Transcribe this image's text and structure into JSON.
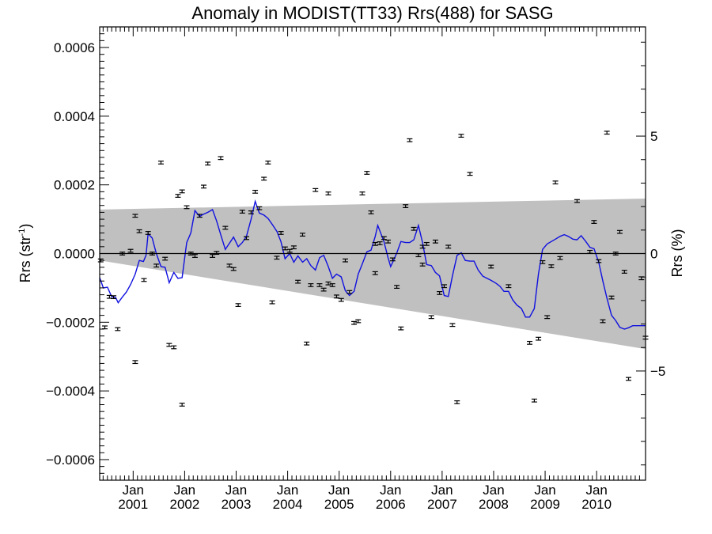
{
  "chart_data": {
    "type": "scatter",
    "title": "Anomaly in MODIST(TT33) Rrs(488) for SASG",
    "ylabel": "Rrs (str",
    "ylabel_sup": "-1",
    "ylabel_end": ")",
    "y2label": "Rrs (%)",
    "xlim": [
      2000.35,
      2010.95
    ],
    "ylim": [
      -0.00066,
      0.00066
    ],
    "y2lim": [
      -9.65,
      9.65
    ],
    "grid": false,
    "x_ticks": [
      {
        "x": 2001.0,
        "month": "Jan",
        "year": "2001"
      },
      {
        "x": 2002.0,
        "month": "Jan",
        "year": "2002"
      },
      {
        "x": 2003.0,
        "month": "Jan",
        "year": "2003"
      },
      {
        "x": 2004.0,
        "month": "Jan",
        "year": "2004"
      },
      {
        "x": 2005.0,
        "month": "Jan",
        "year": "2005"
      },
      {
        "x": 2006.0,
        "month": "Jan",
        "year": "2006"
      },
      {
        "x": 2007.0,
        "month": "Jan",
        "year": "2007"
      },
      {
        "x": 2008.0,
        "month": "Jan",
        "year": "2008"
      },
      {
        "x": 2009.0,
        "month": "Jan",
        "year": "2009"
      },
      {
        "x": 2010.0,
        "month": "Jan",
        "year": "2010"
      }
    ],
    "y_ticks": [
      {
        "v": 0.0006,
        "label": "0.0006"
      },
      {
        "v": 0.0004,
        "label": "0.0004"
      },
      {
        "v": 0.0002,
        "label": "0.0002"
      },
      {
        "v": 0.0,
        "label": "0.0000"
      },
      {
        "v": -0.0002,
        "label": "−0.0002"
      },
      {
        "v": -0.0004,
        "label": "−0.0004"
      },
      {
        "v": -0.0006,
        "label": "−0.0006"
      }
    ],
    "y2_ticks": [
      {
        "v": 5,
        "label": "5"
      },
      {
        "v": 0,
        "label": "0"
      },
      {
        "v": -5,
        "label": "−5"
      }
    ],
    "band": {
      "color": "#c0c0c0",
      "upper": [
        [
          2000.35,
          0.000128
        ],
        [
          2010.95,
          0.00016
        ]
      ],
      "lower": [
        [
          2000.35,
          -2e-05
        ],
        [
          2010.95,
          -0.000278
        ]
      ]
    },
    "zero_line": {
      "color": "#000000"
    },
    "series": [
      {
        "kind": "points",
        "color": "#000000",
        "marker": "error-bar",
        "points": [
          [
            2000.37,
            -2e-05
          ],
          [
            2000.45,
            -0.000215
          ],
          [
            2000.54,
            -0.000126
          ],
          [
            2000.62,
            -0.000127
          ],
          [
            2000.7,
            -0.00022
          ],
          [
            2000.79,
            0.0
          ],
          [
            2000.95,
            8e-06
          ],
          [
            2001.04,
            -0.000316
          ],
          [
            2001.04,
            0.00011
          ],
          [
            2001.12,
            6.5e-05
          ],
          [
            2001.21,
            -7.7e-05
          ],
          [
            2001.29,
            6e-05
          ],
          [
            2001.37,
            0.0
          ],
          [
            2001.45,
            -3.5e-05
          ],
          [
            2001.54,
            0.000265
          ],
          [
            2001.62,
            -1.5e-05
          ],
          [
            2001.7,
            -0.000266
          ],
          [
            2001.79,
            -0.000273
          ],
          [
            2001.87,
            0.000168
          ],
          [
            2001.95,
            0.000181
          ],
          [
            2001.95,
            -0.00044
          ],
          [
            2002.04,
            0.000135
          ],
          [
            2002.12,
            0.0
          ],
          [
            2002.2,
            -7e-06
          ],
          [
            2002.29,
            0.00011
          ],
          [
            2002.37,
            0.000195
          ],
          [
            2002.45,
            0.000262
          ],
          [
            2002.54,
            -7e-06
          ],
          [
            2002.62,
            2e-06
          ],
          [
            2002.7,
            0.000278
          ],
          [
            2002.79,
            7.5e-05
          ],
          [
            2002.87,
            -3.5e-05
          ],
          [
            2002.95,
            -4.5e-05
          ],
          [
            2003.04,
            -0.00015
          ],
          [
            2003.12,
            0.000122
          ],
          [
            2003.2,
            4.5e-05
          ],
          [
            2003.29,
            0.00012
          ],
          [
            2003.37,
            0.00018
          ],
          [
            2003.45,
            0.000132
          ],
          [
            2003.54,
            0.000218
          ],
          [
            2003.62,
            0.000265
          ],
          [
            2003.7,
            -0.000142
          ],
          [
            2003.79,
            -1.2e-05
          ],
          [
            2003.87,
            6e-05
          ],
          [
            2003.95,
            1.5e-05
          ],
          [
            2004.04,
            8e-06
          ],
          [
            2004.12,
            1.8e-05
          ],
          [
            2004.2,
            -8.2e-05
          ],
          [
            2004.29,
            5.5e-05
          ],
          [
            2004.37,
            -0.000262
          ],
          [
            2004.45,
            -9.2e-05
          ],
          [
            2004.54,
            0.000185
          ],
          [
            2004.62,
            -9.2e-05
          ],
          [
            2004.7,
            -0.000105
          ],
          [
            2004.79,
            0.000175
          ],
          [
            2004.79,
            -8.7e-05
          ],
          [
            2004.87,
            -9.2e-05
          ],
          [
            2004.95,
            -0.000125
          ],
          [
            2005.04,
            -0.000135
          ],
          [
            2005.12,
            -2e-05
          ],
          [
            2005.2,
            -0.000112
          ],
          [
            2005.29,
            -0.000202
          ],
          [
            2005.37,
            -0.000197
          ],
          [
            2005.45,
            0.000175
          ],
          [
            2005.54,
            0.000235
          ],
          [
            2005.62,
            0.00012
          ],
          [
            2005.7,
            2.8e-05
          ],
          [
            2005.7,
            -5.7e-05
          ],
          [
            2005.79,
            3e-05
          ],
          [
            2005.87,
            4.5e-05
          ],
          [
            2005.95,
            3.5e-05
          ],
          [
            2006.04,
            -1.7e-05
          ],
          [
            2006.12,
            -9.7e-05
          ],
          [
            2006.2,
            -0.000218
          ],
          [
            2006.29,
            0.000138
          ],
          [
            2006.37,
            0.00033
          ],
          [
            2006.45,
            7.2e-05
          ],
          [
            2006.54,
            -5e-06
          ],
          [
            2006.62,
            -3.2e-05
          ],
          [
            2006.62,
            2e-05
          ],
          [
            2006.7,
            2.8e-05
          ],
          [
            2006.79,
            -0.000185
          ],
          [
            2006.87,
            3.5e-05
          ],
          [
            2006.95,
            -0.000115
          ],
          [
            2007.04,
            -9.5e-05
          ],
          [
            2007.12,
            2e-05
          ],
          [
            2007.2,
            -0.000208
          ],
          [
            2007.29,
            -0.000433
          ],
          [
            2007.37,
            0.000343
          ],
          [
            2007.54,
            0.000232
          ],
          [
            2007.95,
            -3.8e-05
          ],
          [
            2008.29,
            -9.5e-05
          ],
          [
            2008.7,
            -0.00026
          ],
          [
            2008.79,
            -0.000428
          ],
          [
            2008.87,
            -0.000248
          ],
          [
            2008.95,
            -2.5e-05
          ],
          [
            2009.04,
            -0.000185
          ],
          [
            2009.12,
            -3.7e-05
          ],
          [
            2009.2,
            0.000207
          ],
          [
            2009.29,
            -1.3e-05
          ],
          [
            2009.62,
            0.000153
          ],
          [
            2009.87,
            5e-06
          ],
          [
            2009.95,
            9.2e-05
          ],
          [
            2010.04,
            -2.2e-05
          ],
          [
            2010.12,
            -0.000197
          ],
          [
            2010.2,
            0.000352
          ],
          [
            2010.29,
            -0.000128
          ],
          [
            2010.37,
            0.0
          ],
          [
            2010.45,
            6.3e-05
          ],
          [
            2010.54,
            -5.3e-05
          ],
          [
            2010.62,
            -0.000365
          ],
          [
            2010.87,
            -7.2e-05
          ],
          [
            2010.95,
            -0.000245
          ]
        ]
      },
      {
        "kind": "line",
        "color": "#1010e0",
        "points": [
          [
            2000.35,
            -7e-05
          ],
          [
            2000.42,
            -0.0001
          ],
          [
            2000.5,
            -9.8e-05
          ],
          [
            2000.58,
            -0.000125
          ],
          [
            2000.66,
            -0.000128
          ],
          [
            2000.71,
            -0.000143
          ],
          [
            2000.79,
            -0.000127
          ],
          [
            2000.87,
            -0.000112
          ],
          [
            2000.95,
            -9e-05
          ],
          [
            2001.04,
            -6e-05
          ],
          [
            2001.12,
            -2e-05
          ],
          [
            2001.2,
            -2.3e-05
          ],
          [
            2001.25,
            -5e-06
          ],
          [
            2001.29,
            5.8e-05
          ],
          [
            2001.37,
            4.5e-05
          ],
          [
            2001.45,
            -0.0
          ],
          [
            2001.54,
            -3.8e-05
          ],
          [
            2001.62,
            -4e-05
          ],
          [
            2001.7,
            -8.5e-05
          ],
          [
            2001.79,
            -5.5e-05
          ],
          [
            2001.87,
            -7.2e-05
          ],
          [
            2001.95,
            -7e-05
          ],
          [
            2002.04,
            3.2e-05
          ],
          [
            2002.12,
            6e-05
          ],
          [
            2002.2,
            0.000125
          ],
          [
            2002.29,
            0.000108
          ],
          [
            2002.37,
            0.000115
          ],
          [
            2002.45,
            0.00012
          ],
          [
            2002.54,
            0.000128
          ],
          [
            2002.62,
            9.5e-05
          ],
          [
            2002.7,
            5.5e-05
          ],
          [
            2002.79,
            1.2e-05
          ],
          [
            2002.87,
            3e-05
          ],
          [
            2002.95,
            4.8e-05
          ],
          [
            2003.04,
            2e-05
          ],
          [
            2003.12,
            3.2e-05
          ],
          [
            2003.2,
            5e-05
          ],
          [
            2003.29,
            0.0001
          ],
          [
            2003.37,
            0.000152
          ],
          [
            2003.45,
            0.000118
          ],
          [
            2003.54,
            0.000112
          ],
          [
            2003.62,
            0.000102
          ],
          [
            2003.7,
            8.5e-05
          ],
          [
            2003.79,
            6.5e-05
          ],
          [
            2003.87,
            3.5e-05
          ],
          [
            2003.95,
            -1.5e-05
          ],
          [
            2004.04,
            0.0
          ],
          [
            2004.12,
            -2.5e-05
          ],
          [
            2004.2,
            -7e-06
          ],
          [
            2004.29,
            -2.5e-05
          ],
          [
            2004.37,
            -1.5e-05
          ],
          [
            2004.45,
            -3.5e-05
          ],
          [
            2004.54,
            -4.8e-05
          ],
          [
            2004.62,
            -1.2e-05
          ],
          [
            2004.7,
            -5e-06
          ],
          [
            2004.79,
            -3.8e-05
          ],
          [
            2004.87,
            -7.2e-05
          ],
          [
            2004.95,
            -6e-05
          ],
          [
            2005.04,
            -6.8e-05
          ],
          [
            2005.12,
            -0.000108
          ],
          [
            2005.2,
            -0.000122
          ],
          [
            2005.29,
            -0.00011
          ],
          [
            2005.37,
            -6e-05
          ],
          [
            2005.45,
            -3e-05
          ],
          [
            2005.54,
            5e-06
          ],
          [
            2005.62,
            1e-05
          ],
          [
            2005.7,
            5e-05
          ],
          [
            2005.75,
            8.2e-05
          ],
          [
            2005.87,
            3.5e-05
          ],
          [
            2005.95,
            -1.2e-05
          ],
          [
            2006.0,
            -3.8e-05
          ],
          [
            2006.04,
            -2.5e-05
          ],
          [
            2006.12,
            2e-06
          ],
          [
            2006.2,
            3.5e-05
          ],
          [
            2006.29,
            3.2e-05
          ],
          [
            2006.37,
            3.2e-05
          ],
          [
            2006.45,
            4e-05
          ],
          [
            2006.54,
            8.2e-05
          ],
          [
            2006.62,
            3.2e-05
          ],
          [
            2006.7,
            -3.2e-05
          ],
          [
            2006.79,
            -3.5e-05
          ],
          [
            2006.87,
            -5.5e-05
          ],
          [
            2006.95,
            -6.5e-05
          ],
          [
            2007.04,
            -0.000122
          ],
          [
            2007.12,
            -0.000125
          ],
          [
            2007.2,
            -6.5e-05
          ],
          [
            2007.29,
            -5e-06
          ],
          [
            2007.37,
            2e-06
          ],
          [
            2007.45,
            -2e-05
          ],
          [
            2007.54,
            -2.2e-05
          ],
          [
            2007.62,
            -2.2e-05
          ],
          [
            2007.7,
            -4.8e-05
          ],
          [
            2007.79,
            -6.6e-05
          ],
          [
            2007.87,
            -7.2e-05
          ],
          [
            2007.95,
            -7.8e-05
          ],
          [
            2008.04,
            -8.6e-05
          ],
          [
            2008.12,
            -9.5e-05
          ],
          [
            2008.2,
            -0.00011
          ],
          [
            2008.29,
            -0.00011
          ],
          [
            2008.37,
            -0.000135
          ],
          [
            2008.45,
            -0.00015
          ],
          [
            2008.54,
            -0.00016
          ],
          [
            2008.62,
            -0.000185
          ],
          [
            2008.7,
            -0.000185
          ],
          [
            2008.79,
            -0.00016
          ],
          [
            2008.87,
            -6e-05
          ],
          [
            2008.95,
            1.2e-05
          ],
          [
            2009.04,
            2.8e-05
          ],
          [
            2009.12,
            3.5e-05
          ],
          [
            2009.2,
            4.2e-05
          ],
          [
            2009.29,
            5e-05
          ],
          [
            2009.37,
            5.5e-05
          ],
          [
            2009.45,
            5e-05
          ],
          [
            2009.54,
            4.2e-05
          ],
          [
            2009.62,
            4e-05
          ],
          [
            2009.7,
            5.2e-05
          ],
          [
            2009.79,
            3.5e-05
          ],
          [
            2009.87,
            1.8e-05
          ],
          [
            2009.95,
            1.4e-05
          ],
          [
            2010.04,
            -2.5e-05
          ],
          [
            2010.12,
            -8e-05
          ],
          [
            2010.2,
            -0.00013
          ],
          [
            2010.29,
            -0.00018
          ],
          [
            2010.37,
            -0.000195
          ],
          [
            2010.45,
            -0.000215
          ],
          [
            2010.54,
            -0.00022
          ],
          [
            2010.62,
            -0.000216
          ],
          [
            2010.7,
            -0.00021
          ],
          [
            2010.95,
            -0.00021
          ]
        ]
      }
    ]
  }
}
